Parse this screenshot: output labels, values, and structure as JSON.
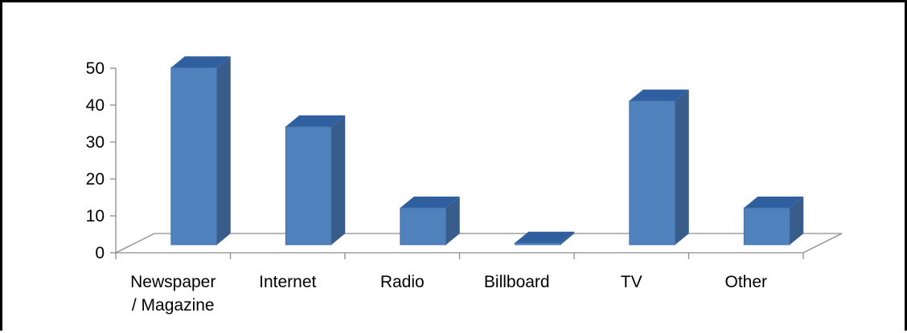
{
  "chart_data": {
    "type": "bar",
    "style": "3d-column",
    "categories": [
      [
        "Newspaper",
        "/ Magazine"
      ],
      [
        "Internet"
      ],
      [
        "Radio"
      ],
      [
        "Billboard"
      ],
      [
        "TV"
      ],
      [
        "Other"
      ]
    ],
    "values": [
      48,
      32,
      10,
      0.5,
      39,
      10
    ],
    "title": "",
    "xlabel": "",
    "ylabel": "",
    "ylim": [
      0,
      50
    ],
    "yticks": [
      "0",
      "10",
      "20",
      "30",
      "40",
      "50"
    ],
    "grid": false,
    "legend": "none",
    "colors": {
      "front": "#4f81bd",
      "side": "#385d8a",
      "top": "#2f5f9f"
    }
  }
}
